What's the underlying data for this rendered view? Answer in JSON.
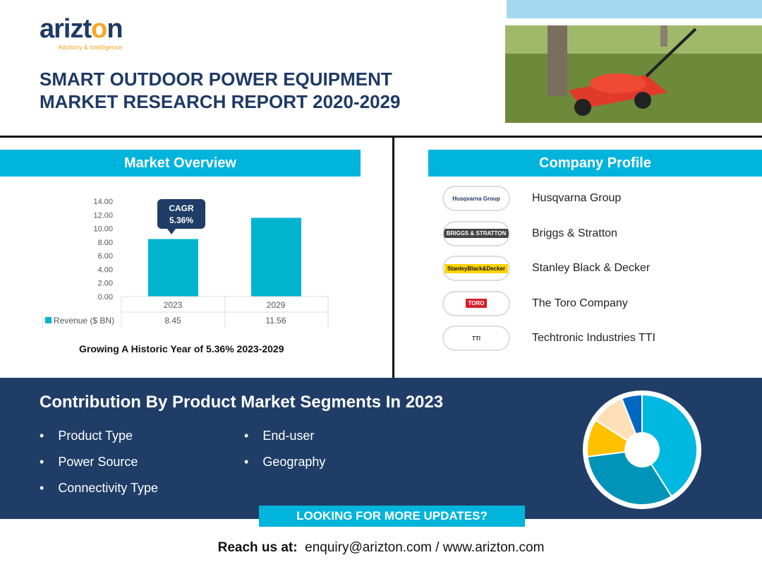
{
  "logo": {
    "name_pre": "arizt",
    "name_o": "o",
    "name_post": "n",
    "tagline": "Advisory & Intelligence"
  },
  "title": {
    "line1": "SMART OUTDOOR POWER EQUIPMENT",
    "line2": "MARKET RESEARCH REPORT 2020-2029"
  },
  "market_overview": {
    "heading": "Market Overview",
    "caption": "Growing A Historic Year of 5.36% 2023-2029",
    "cagr_label": "CAGR",
    "cagr_value": "5.36%"
  },
  "chart_data": {
    "type": "bar",
    "categories": [
      "2023",
      "2029"
    ],
    "series": [
      {
        "name": "Revenue ($ BN)",
        "values": [
          8.45,
          11.56
        ]
      }
    ],
    "value_labels": [
      "8.45",
      "11.56"
    ],
    "ylim": [
      0,
      14
    ],
    "yticks": [
      "0.00",
      "2.00",
      "4.00",
      "6.00",
      "8.00",
      "10.00",
      "12.00",
      "14.00"
    ],
    "color": "#00b4d0"
  },
  "company_profile": {
    "heading": "Company Profile",
    "companies": [
      {
        "name": "Husqvarna Group",
        "logo": "Husqvarna Group"
      },
      {
        "name": "Briggs & Stratton",
        "logo": "BRIGGS & STRATTON"
      },
      {
        "name": "Stanley Black & Decker",
        "logo": "StanleyBlack&Decker"
      },
      {
        "name": "The Toro Company",
        "logo": "TORO"
      },
      {
        "name": "Techtronic Industries TTI",
        "logo": "TTI"
      }
    ]
  },
  "segments": {
    "heading": "Contribution By Product Market Segments In 2023",
    "col1": [
      "Product Type",
      "Power Source",
      "Connectivity Type"
    ],
    "col2": [
      "End-user",
      "Geography"
    ],
    "pie": [
      {
        "value": 41,
        "color": "#00b8e0"
      },
      {
        "value": 32,
        "color": "#0095b8"
      },
      {
        "value": 11,
        "color": "#ffc000"
      },
      {
        "value": 10,
        "color": "#fde0b8"
      },
      {
        "value": 6,
        "color": "#0068c0"
      }
    ]
  },
  "cta": {
    "button": "LOOKING FOR MORE UPDATES?",
    "reach_label": "Reach us at:",
    "email": "enquiry@arizton.com",
    "sep": "/",
    "website": "www.arizton.com"
  }
}
